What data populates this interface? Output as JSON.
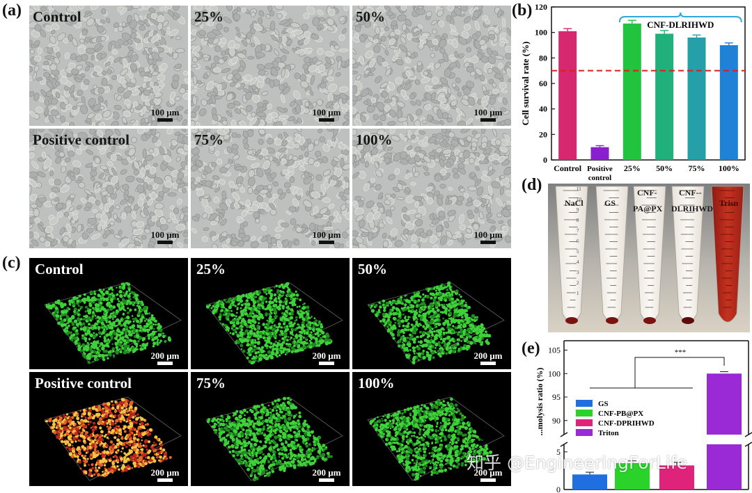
{
  "panel_labels": {
    "a": "(a)",
    "b": "(b)",
    "c": "(c)",
    "d": "(d)",
    "e": "(e)"
  },
  "panel_a": {
    "scale_bar": "100 μm",
    "tiles": [
      {
        "label": "Control"
      },
      {
        "label": "25%"
      },
      {
        "label": "50%"
      },
      {
        "label": "Positive control"
      },
      {
        "label": "75%"
      },
      {
        "label": "100%"
      }
    ]
  },
  "panel_c": {
    "scale_bar": "200 μm",
    "tiles": [
      {
        "label": "Control",
        "dot_color": "#3fd13a"
      },
      {
        "label": "25%",
        "dot_color": "#3fd13a"
      },
      {
        "label": "50%",
        "dot_color": "#3fd13a"
      },
      {
        "label": "Positive control",
        "dot_color": "#d9521e"
      },
      {
        "label": "75%",
        "dot_color": "#3fd13a"
      },
      {
        "label": "100%",
        "dot_color": "#3fd13a"
      }
    ]
  },
  "panel_d": {
    "tube_labels": [
      "NaCl",
      "GS",
      "CNF-",
      "PA@PX",
      "CNF--",
      "DLRIHWD",
      "Trisn"
    ],
    "tick_numbers": [
      "11",
      "10",
      "9",
      "8",
      "7",
      "6",
      "5",
      "4",
      "3",
      "2",
      "1"
    ]
  },
  "watermark": "知乎 @EngineeringForLife",
  "chart_data": [
    {
      "type": "bar",
      "title": "",
      "ylabel": "Cell survival rate (%)",
      "xlabel": "",
      "categories": [
        "Control",
        "Positive control",
        "25%",
        "50%",
        "75%",
        "100%"
      ],
      "values": [
        101,
        10,
        107,
        99,
        96,
        90
      ],
      "errors": [
        2,
        1.2,
        2.5,
        2.5,
        2,
        1.8
      ],
      "colors": [
        "#d6286e",
        "#8a1fd0",
        "#21c33f",
        "#1fb07c",
        "#25a0a8",
        "#1f82d6"
      ],
      "ylim": [
        0,
        120
      ],
      "yticks": [
        "0",
        "20",
        "40",
        "60",
        "80",
        "100",
        "120"
      ],
      "threshold": 70,
      "threshold_color": "#e01b1b",
      "bracket_label": "CNF-DLRIHWD",
      "bracket_color": "#2ea7e0"
    },
    {
      "type": "bar",
      "title": "",
      "ylabel": "...molysis ratio (%)",
      "xlabel": "",
      "categories": [
        "GS",
        "CNF-PB@PX",
        "CNF-DPRIHWD",
        "Triton"
      ],
      "values": [
        2,
        3.5,
        3.2,
        100
      ],
      "errors": [
        0.3,
        0.3,
        0.4,
        0.4
      ],
      "colors": [
        "#1f6fe0",
        "#2ad22a",
        "#e0237a",
        "#9a2ad6"
      ],
      "yticks_lower": [
        "0",
        "5"
      ],
      "yticks_upper": [
        "90",
        "95",
        "100",
        "105"
      ],
      "significance": "***",
      "legend": [
        "GS",
        "CNF-PB@PX",
        "CNF-DPRIHWD",
        "Triton"
      ],
      "legend_position": "middle-left"
    }
  ]
}
